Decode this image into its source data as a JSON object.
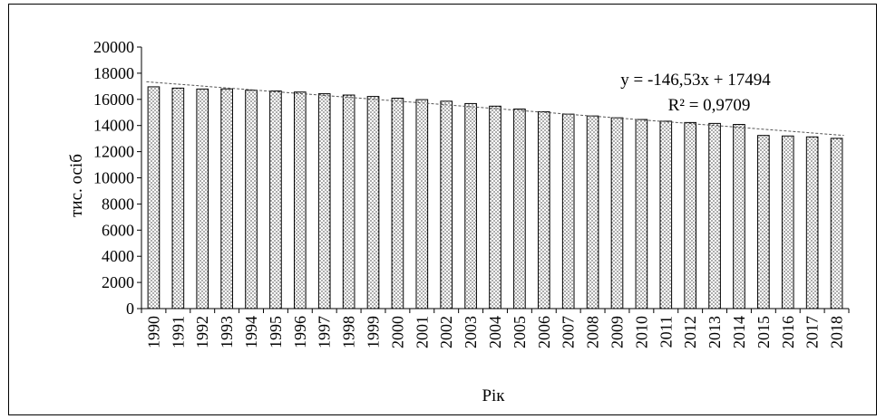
{
  "chart_data": {
    "type": "bar",
    "title": "",
    "xlabel": "Рік",
    "ylabel": "тис. осіб",
    "ylim": [
      0,
      20000
    ],
    "ytick_step": 2000,
    "yticks": [
      "0",
      "2000",
      "4000",
      "6000",
      "8000",
      "10000",
      "12000",
      "14000",
      "16000",
      "18000",
      "20000"
    ],
    "categories": [
      "1990",
      "1991",
      "1992",
      "1993",
      "1994",
      "1995",
      "1996",
      "1997",
      "1998",
      "1999",
      "2000",
      "2001",
      "2002",
      "2003",
      "2004",
      "2005",
      "2006",
      "2007",
      "2008",
      "2009",
      "2010",
      "2011",
      "2012",
      "2013",
      "2014",
      "2015",
      "2016",
      "2017",
      "2018"
    ],
    "values": [
      16960,
      16860,
      16790,
      16800,
      16700,
      16640,
      16560,
      16430,
      16330,
      16220,
      16090,
      15980,
      15860,
      15680,
      15480,
      15260,
      15050,
      14870,
      14730,
      14590,
      14460,
      14330,
      14230,
      14160,
      14080,
      13240,
      13200,
      13130,
      13020
    ],
    "grid": false,
    "legend": "none",
    "bar_pattern": "dotted",
    "bar_fill": "#ffffff",
    "bar_stroke": "#000000",
    "trendline": {
      "type": "linear",
      "slope": -146.53,
      "intercept": 17494,
      "style": "dashed",
      "color": "#555555",
      "equation": "y = -146,53x + 17494",
      "r_squared": "R² = 0,9709"
    }
  }
}
